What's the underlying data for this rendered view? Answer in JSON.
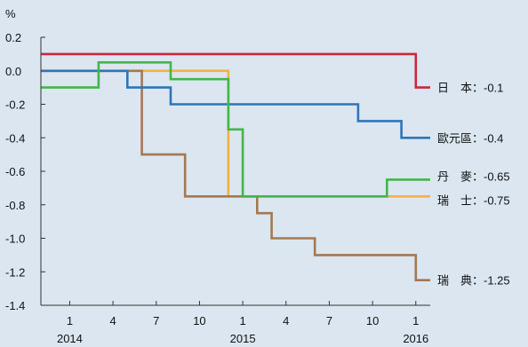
{
  "chart_data": {
    "type": "line",
    "ylabel": "%",
    "ylim": [
      -1.4,
      0.2
    ],
    "y_ticks": [
      "0.2",
      "0.0",
      "-0.2",
      "-0.4",
      "-0.6",
      "-0.8",
      "-1.0",
      "-1.2",
      "-1.4"
    ],
    "y_tick_values": [
      0.2,
      0.0,
      -0.2,
      -0.4,
      -0.6,
      -0.8,
      -1.0,
      -1.2,
      -1.4
    ],
    "x_ticks": [
      {
        "month": "1",
        "year": "2014",
        "date": "2014-01"
      },
      {
        "month": "4",
        "year": "",
        "date": "2014-04"
      },
      {
        "month": "7",
        "year": "",
        "date": "2014-07"
      },
      {
        "month": "10",
        "year": "",
        "date": "2014-10"
      },
      {
        "month": "1",
        "year": "2015",
        "date": "2015-01"
      },
      {
        "month": "4",
        "year": "",
        "date": "2015-04"
      },
      {
        "month": "7",
        "year": "",
        "date": "2015-07"
      },
      {
        "month": "10",
        "year": "",
        "date": "2015-10"
      },
      {
        "month": "1",
        "year": "2016",
        "date": "2016-01"
      }
    ],
    "x_range": [
      "2013-11",
      "2016-02"
    ],
    "series": [
      {
        "label": "日　本：-0.1",
        "color": "#c8283c",
        "points": [
          [
            "2013-11",
            0.1
          ],
          [
            "2016-01",
            0.1
          ],
          [
            "2016-01",
            -0.1
          ],
          [
            "2016-02",
            -0.1
          ]
        ]
      },
      {
        "label": "歐元區：-0.4",
        "color": "#2e75b6",
        "points": [
          [
            "2013-11",
            0.0
          ],
          [
            "2014-05",
            0.0
          ],
          [
            "2014-05",
            -0.1
          ],
          [
            "2014-08",
            -0.1
          ],
          [
            "2014-08",
            -0.2
          ],
          [
            "2015-09",
            -0.2
          ],
          [
            "2015-09",
            -0.3
          ],
          [
            "2015-12",
            -0.3
          ],
          [
            "2015-12",
            -0.4
          ],
          [
            "2016-02",
            -0.4
          ]
        ]
      },
      {
        "label": "丹　麥：-0.65",
        "color": "#43b649",
        "points": [
          [
            "2013-11",
            -0.1
          ],
          [
            "2014-03",
            -0.1
          ],
          [
            "2014-03",
            0.05
          ],
          [
            "2014-08",
            0.05
          ],
          [
            "2014-08",
            -0.05
          ],
          [
            "2014-12",
            -0.05
          ],
          [
            "2014-12",
            -0.35
          ],
          [
            "2015-01",
            -0.35
          ],
          [
            "2015-01",
            -0.5
          ],
          [
            "2015-01",
            -0.5
          ],
          [
            "2015-01",
            -0.75
          ],
          [
            "2015-11",
            -0.75
          ],
          [
            "2015-11",
            -0.65
          ],
          [
            "2016-02",
            -0.65
          ]
        ]
      },
      {
        "label": "瑞　士：-0.75",
        "color": "#f5b041",
        "points": [
          [
            "2013-11",
            0.0
          ],
          [
            "2014-12",
            0.0
          ],
          [
            "2014-12",
            -0.75
          ],
          [
            "2016-02",
            -0.75
          ]
        ]
      },
      {
        "label": "瑞　典：-1.25",
        "color": "#a47852",
        "points": [
          [
            "2013-11",
            0.0
          ],
          [
            "2014-06",
            0.0
          ],
          [
            "2014-06",
            -0.5
          ],
          [
            "2014-09",
            -0.5
          ],
          [
            "2014-09",
            -0.75
          ],
          [
            "2015-02",
            -0.75
          ],
          [
            "2015-02",
            -0.85
          ],
          [
            "2015-03",
            -0.85
          ],
          [
            "2015-03",
            -1.0
          ],
          [
            "2015-06",
            -1.0
          ],
          [
            "2015-06",
            -1.1
          ],
          [
            "2016-01",
            -1.1
          ],
          [
            "2016-01",
            -1.25
          ],
          [
            "2016-02",
            -1.25
          ]
        ]
      }
    ],
    "grid": false,
    "legend": "right, inline labels"
  }
}
